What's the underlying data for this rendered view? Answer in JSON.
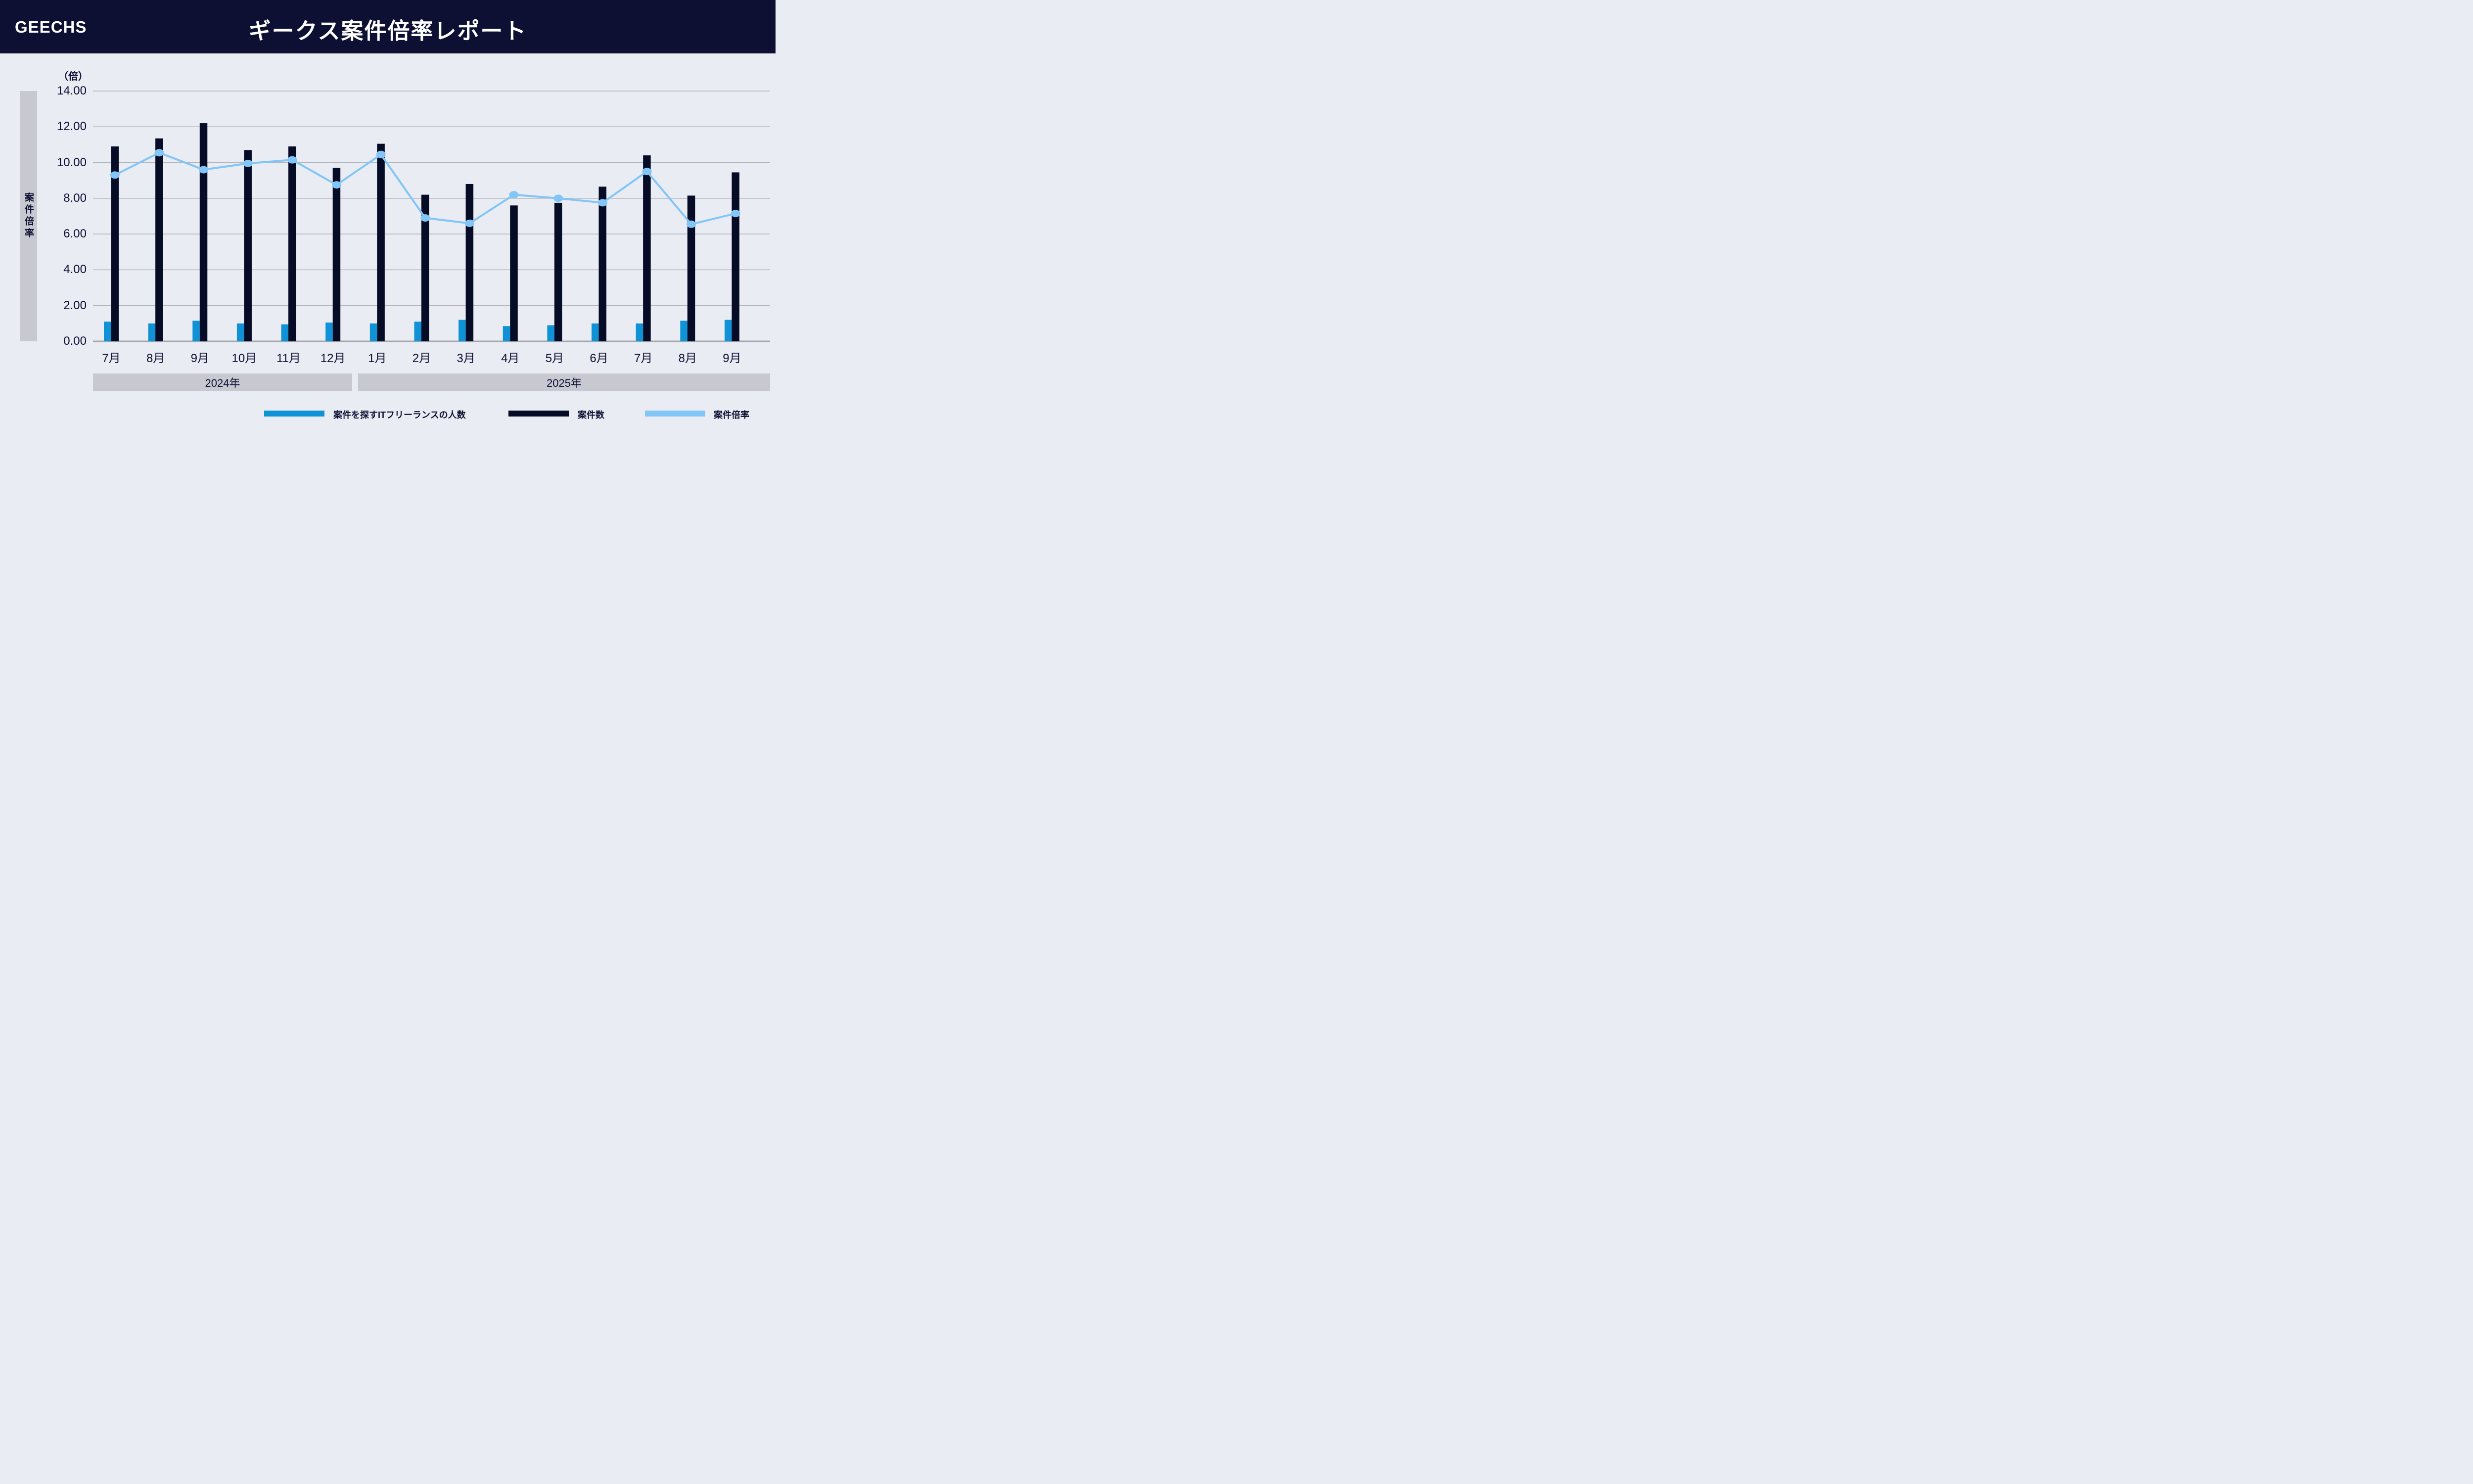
{
  "header": {
    "logo": "GEECHS",
    "title": "ギークス案件倍率レポート"
  },
  "chart_data": {
    "type": "bar+line",
    "title": "ギークス案件倍率レポート",
    "unit_label": "（倍）",
    "ylabel": "案件倍率",
    "xlabel": "",
    "ylim": [
      0,
      14
    ],
    "ytick_step": 2,
    "yticks": [
      "14.00",
      "12.00",
      "10.00",
      "8.00",
      "6.00",
      "4.00",
      "2.00",
      "0.00"
    ],
    "grid": true,
    "legend_position": "bottom",
    "categories": [
      "7月",
      "8月",
      "9月",
      "10月",
      "11月",
      "12月",
      "1月",
      "2月",
      "3月",
      "4月",
      "5月",
      "6月",
      "7月",
      "8月",
      "9月"
    ],
    "year_groups": [
      {
        "label": "2024年",
        "span": 6
      },
      {
        "label": "2025年",
        "span": 9
      }
    ],
    "series": [
      {
        "name": "案件を探すITフリーランスの人数",
        "type": "bar",
        "color": "#0f93d6",
        "values": [
          1.1,
          1.0,
          1.15,
          1.0,
          0.95,
          1.05,
          1.0,
          1.1,
          1.2,
          0.85,
          0.9,
          1.0,
          1.0,
          1.15,
          1.2
        ]
      },
      {
        "name": "案件数",
        "type": "bar",
        "color": "#060b26",
        "values": [
          10.9,
          11.35,
          12.2,
          10.7,
          10.9,
          9.7,
          11.05,
          8.2,
          8.8,
          7.6,
          7.75,
          8.65,
          10.4,
          8.15,
          9.45
        ]
      },
      {
        "name": "案件倍率",
        "type": "line",
        "color": "#82c5f7",
        "values": [
          9.3,
          10.55,
          9.6,
          9.95,
          10.15,
          8.75,
          10.45,
          6.9,
          6.6,
          8.2,
          8.0,
          7.75,
          9.5,
          6.55,
          7.15
        ]
      }
    ]
  },
  "colors": {
    "page_bg": "#e9ecf2",
    "header_bg": "#0d1033",
    "text": "#0d1033",
    "grid": "#b4b4bc",
    "baseline": "#a6a6ae",
    "band_gray": "#c8c8d1",
    "bar_people": "#0f93d6",
    "bar_cases": "#060b26",
    "line_ratio": "#82c5f7"
  }
}
